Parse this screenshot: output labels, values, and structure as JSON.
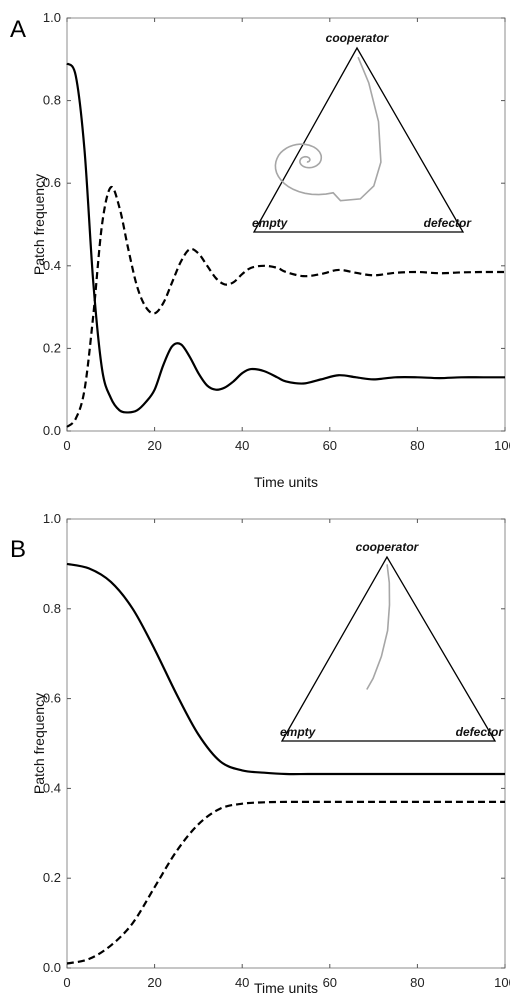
{
  "chart_data": [
    {
      "panel": "A",
      "type": "line",
      "xlabel": "Time units",
      "ylabel": "Patch frequency",
      "xlim": [
        0,
        100
      ],
      "ylim": [
        0,
        1
      ],
      "xticks": [
        "0",
        "20",
        "40",
        "60",
        "80",
        "100"
      ],
      "yticks": [
        "0.0",
        "0.2",
        "0.4",
        "0.6",
        "0.8",
        "1.0"
      ],
      "series": [
        {
          "style": "solid",
          "color": "#000000",
          "x": [
            0,
            2,
            4,
            6,
            8,
            10,
            12,
            14,
            16,
            18,
            20,
            22,
            24,
            26,
            28,
            30,
            32,
            34,
            36,
            38,
            40,
            42,
            45,
            48,
            50,
            54,
            58,
            62,
            66,
            70,
            75,
            80,
            85,
            90,
            95,
            100
          ],
          "y": [
            0.89,
            0.86,
            0.68,
            0.36,
            0.15,
            0.08,
            0.05,
            0.045,
            0.05,
            0.07,
            0.1,
            0.16,
            0.205,
            0.21,
            0.18,
            0.14,
            0.11,
            0.1,
            0.105,
            0.12,
            0.14,
            0.15,
            0.145,
            0.13,
            0.12,
            0.115,
            0.125,
            0.135,
            0.13,
            0.125,
            0.13,
            0.13,
            0.128,
            0.13,
            0.13,
            0.13
          ]
        },
        {
          "style": "dashed",
          "color": "#000000",
          "x": [
            0,
            2,
            4,
            6,
            8,
            10,
            12,
            14,
            16,
            18,
            20,
            22,
            24,
            26,
            28,
            30,
            32,
            34,
            36,
            38,
            40,
            42,
            45,
            48,
            50,
            54,
            58,
            62,
            66,
            70,
            75,
            80,
            85,
            90,
            95,
            100
          ],
          "y": [
            0.01,
            0.03,
            0.1,
            0.28,
            0.5,
            0.59,
            0.54,
            0.44,
            0.35,
            0.3,
            0.285,
            0.31,
            0.36,
            0.41,
            0.44,
            0.43,
            0.4,
            0.37,
            0.355,
            0.36,
            0.38,
            0.395,
            0.4,
            0.395,
            0.385,
            0.375,
            0.38,
            0.39,
            0.383,
            0.377,
            0.383,
            0.385,
            0.382,
            0.384,
            0.385,
            0.385
          ]
        }
      ],
      "inset": {
        "type": "simplex",
        "vertices": {
          "top": "cooperator",
          "left": "empty",
          "right": "defector"
        },
        "trajectory_color": "#a6a6a6"
      }
    },
    {
      "panel": "B",
      "type": "line",
      "xlabel": "Time units",
      "ylabel": "Patch frequency",
      "xlim": [
        0,
        100
      ],
      "ylim": [
        0,
        1
      ],
      "xticks": [
        "0",
        "20",
        "40",
        "60",
        "80",
        "100"
      ],
      "yticks": [
        "0.0",
        "0.2",
        "0.4",
        "0.6",
        "0.8",
        "1.0"
      ],
      "series": [
        {
          "style": "solid",
          "color": "#000000",
          "x": [
            0,
            5,
            10,
            15,
            20,
            25,
            30,
            35,
            40,
            45,
            50,
            55,
            60,
            70,
            80,
            90,
            100
          ],
          "y": [
            0.9,
            0.89,
            0.86,
            0.8,
            0.71,
            0.61,
            0.52,
            0.46,
            0.44,
            0.435,
            0.432,
            0.432,
            0.432,
            0.432,
            0.432,
            0.432,
            0.432
          ]
        },
        {
          "style": "dashed",
          "color": "#000000",
          "x": [
            0,
            5,
            10,
            15,
            20,
            25,
            30,
            35,
            40,
            45,
            50,
            55,
            60,
            70,
            80,
            90,
            100
          ],
          "y": [
            0.01,
            0.02,
            0.05,
            0.1,
            0.18,
            0.26,
            0.32,
            0.355,
            0.366,
            0.369,
            0.37,
            0.37,
            0.37,
            0.37,
            0.37,
            0.37,
            0.37
          ]
        }
      ],
      "inset": {
        "type": "simplex",
        "vertices": {
          "top": "cooperator",
          "left": "empty",
          "right": "defector"
        },
        "trajectory_color": "#a6a6a6"
      }
    }
  ]
}
